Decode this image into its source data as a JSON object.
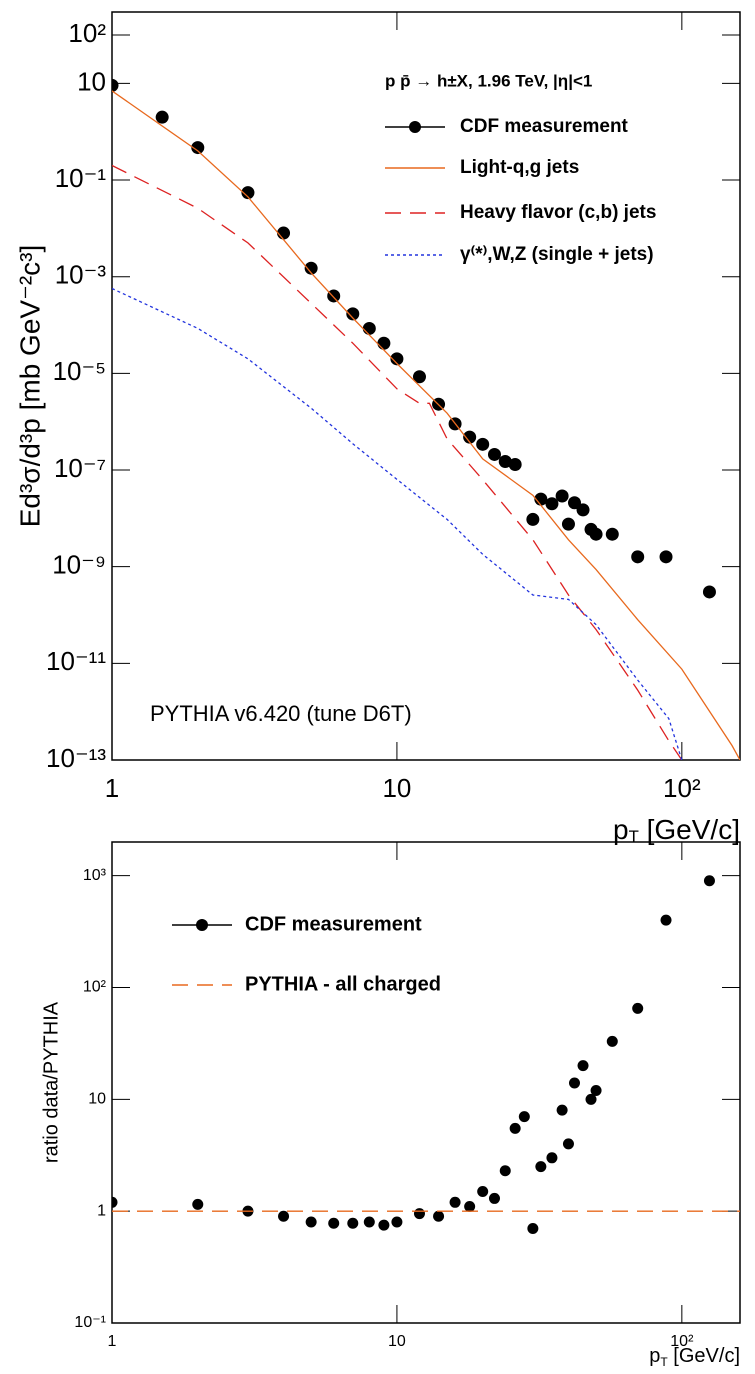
{
  "chart_data": [
    {
      "type": "line",
      "log_x": true,
      "log_y": true,
      "ylabel": "Ed³σ/d³p [mb GeV⁻²c³]",
      "xlabel": {
        "base": "p",
        "sub": "T",
        "unit": " [GeV/c]"
      },
      "legend_title": "p p̄ → h±X, 1.96 TeV, |η|<1",
      "annotation": "PYTHIA v6.420 (tune D6T)",
      "xlim": [
        1,
        160
      ],
      "ylim": [
        1e-13,
        300
      ],
      "xticks": [
        1,
        10,
        {
          "value": 100,
          "label": "10²"
        }
      ],
      "yticks": [
        {
          "value": 100,
          "label": "10²"
        },
        10,
        {
          "value": 0.1,
          "label": "10⁻¹"
        },
        {
          "value": 0.001,
          "label": "10⁻³"
        },
        {
          "value": 1e-05,
          "label": "10⁻⁵"
        },
        {
          "value": 1e-07,
          "label": "10⁻⁷"
        },
        {
          "value": 1e-09,
          "label": "10⁻⁹"
        },
        {
          "value": 1e-11,
          "label": "10⁻¹¹"
        },
        {
          "value": 1e-13,
          "label": "10⁻¹³"
        }
      ],
      "series": [
        {
          "name": "CDF measurement",
          "color": "#000000",
          "style": "markers",
          "x": [
            1,
            1.5,
            2,
            3,
            4,
            5,
            6,
            7,
            8,
            9,
            10,
            12,
            14,
            16,
            18,
            20,
            22,
            24,
            26,
            30,
            32,
            35,
            38,
            40,
            42,
            45,
            48,
            50,
            57,
            70,
            88,
            125
          ],
          "values": [
            9.1,
            2,
            0.47,
            0.055,
            0.008,
            0.0015,
            0.0004,
            0.00017,
            8.5e-05,
            4.2e-05,
            2e-05,
            8.5e-06,
            2.3e-06,
            9e-07,
            4.8e-07,
            3.4e-07,
            2.1e-07,
            1.5e-07,
            1.3e-07,
            9.5e-09,
            2.5e-08,
            2e-08,
            2.9e-08,
            7.6e-09,
            2.1e-08,
            1.5e-08,
            5.9e-09,
            4.7e-09,
            4.7e-09,
            1.6e-09,
            1.6e-09,
            3e-10
          ]
        },
        {
          "name": "Light-q,g jets",
          "color": "#e8691e",
          "style": "solid",
          "x": [
            1,
            2,
            3,
            5,
            7,
            10,
            15,
            20,
            30,
            40,
            50,
            70,
            100,
            150,
            160
          ],
          "values": [
            7,
            0.4,
            0.045,
            0.0012,
            0.00014,
            1.6e-05,
            1.5e-06,
            1.7e-07,
            3e-08,
            3.6e-09,
            8.7e-10,
            8e-11,
            7.6e-12,
            2e-13,
            1e-13
          ]
        },
        {
          "name": "Heavy flavor (c,b) jets",
          "color": "#dd2222",
          "style": "dashed",
          "x": [
            1,
            2,
            3,
            5,
            7,
            10,
            12,
            13,
            15,
            20,
            30,
            40,
            50,
            70,
            90,
            100
          ],
          "values": [
            0.2,
            0.026,
            0.005,
            0.00028,
            4.2e-05,
            4.8e-06,
            2.4e-06,
            2.4e-06,
            4.4e-07,
            6.3e-08,
            3.6e-09,
            2.6e-10,
            5e-11,
            2.8e-12,
            2.5e-13,
            1e-13
          ]
        },
        {
          "name": "γ⁽*⁾,W,Z (single + jets)",
          "color": "#2233dd",
          "style": "dotted",
          "x": [
            1,
            2,
            3,
            5,
            7,
            10,
            15,
            20,
            30,
            40,
            50,
            70,
            90,
            100
          ],
          "values": [
            0.00057,
            8.5e-05,
            2e-05,
            1.9e-06,
            3.5e-07,
            6.4e-08,
            9.5e-09,
            1.8e-09,
            2.6e-10,
            2.1e-10,
            6.3e-11,
            4.5e-12,
            7.2e-13,
            1e-13
          ]
        }
      ]
    },
    {
      "type": "line",
      "log_x": true,
      "log_y": true,
      "ylabel": "ratio data/PYTHIA",
      "xlabel": {
        "base": "p",
        "sub": "T",
        "unit": " [GeV/c]"
      },
      "xlim": [
        1,
        160
      ],
      "ylim": [
        0.1,
        2000
      ],
      "xticks": [
        1,
        10,
        {
          "value": 100,
          "label": "10²"
        }
      ],
      "yticks": [
        {
          "value": 1000,
          "label": "10³"
        },
        {
          "value": 100,
          "label": "10²"
        },
        10,
        1,
        {
          "value": 0.1,
          "label": "10⁻¹"
        }
      ],
      "series": [
        {
          "name": "CDF measurement",
          "color": "#000000",
          "style": "markers",
          "x": [
            1,
            2,
            3,
            4,
            5,
            6,
            7,
            8,
            9,
            10,
            12,
            14,
            16,
            18,
            20,
            22,
            24,
            26,
            28,
            30,
            32,
            35,
            38,
            40,
            42,
            45,
            48,
            50,
            57,
            70,
            88,
            125
          ],
          "values": [
            1.2,
            1.15,
            1,
            0.9,
            0.8,
            0.78,
            0.78,
            0.8,
            0.75,
            0.8,
            0.95,
            0.9,
            1.2,
            1.1,
            1.5,
            1.3,
            2.3,
            5.5,
            7,
            0.7,
            2.5,
            3,
            8,
            4,
            14,
            20,
            10,
            12,
            33,
            65,
            400,
            900
          ]
        },
        {
          "name": "PYTHIA - all charged",
          "color": "#e8691e",
          "style": "dashed",
          "x": [
            1,
            160
          ],
          "values": [
            1,
            1
          ]
        }
      ]
    }
  ]
}
